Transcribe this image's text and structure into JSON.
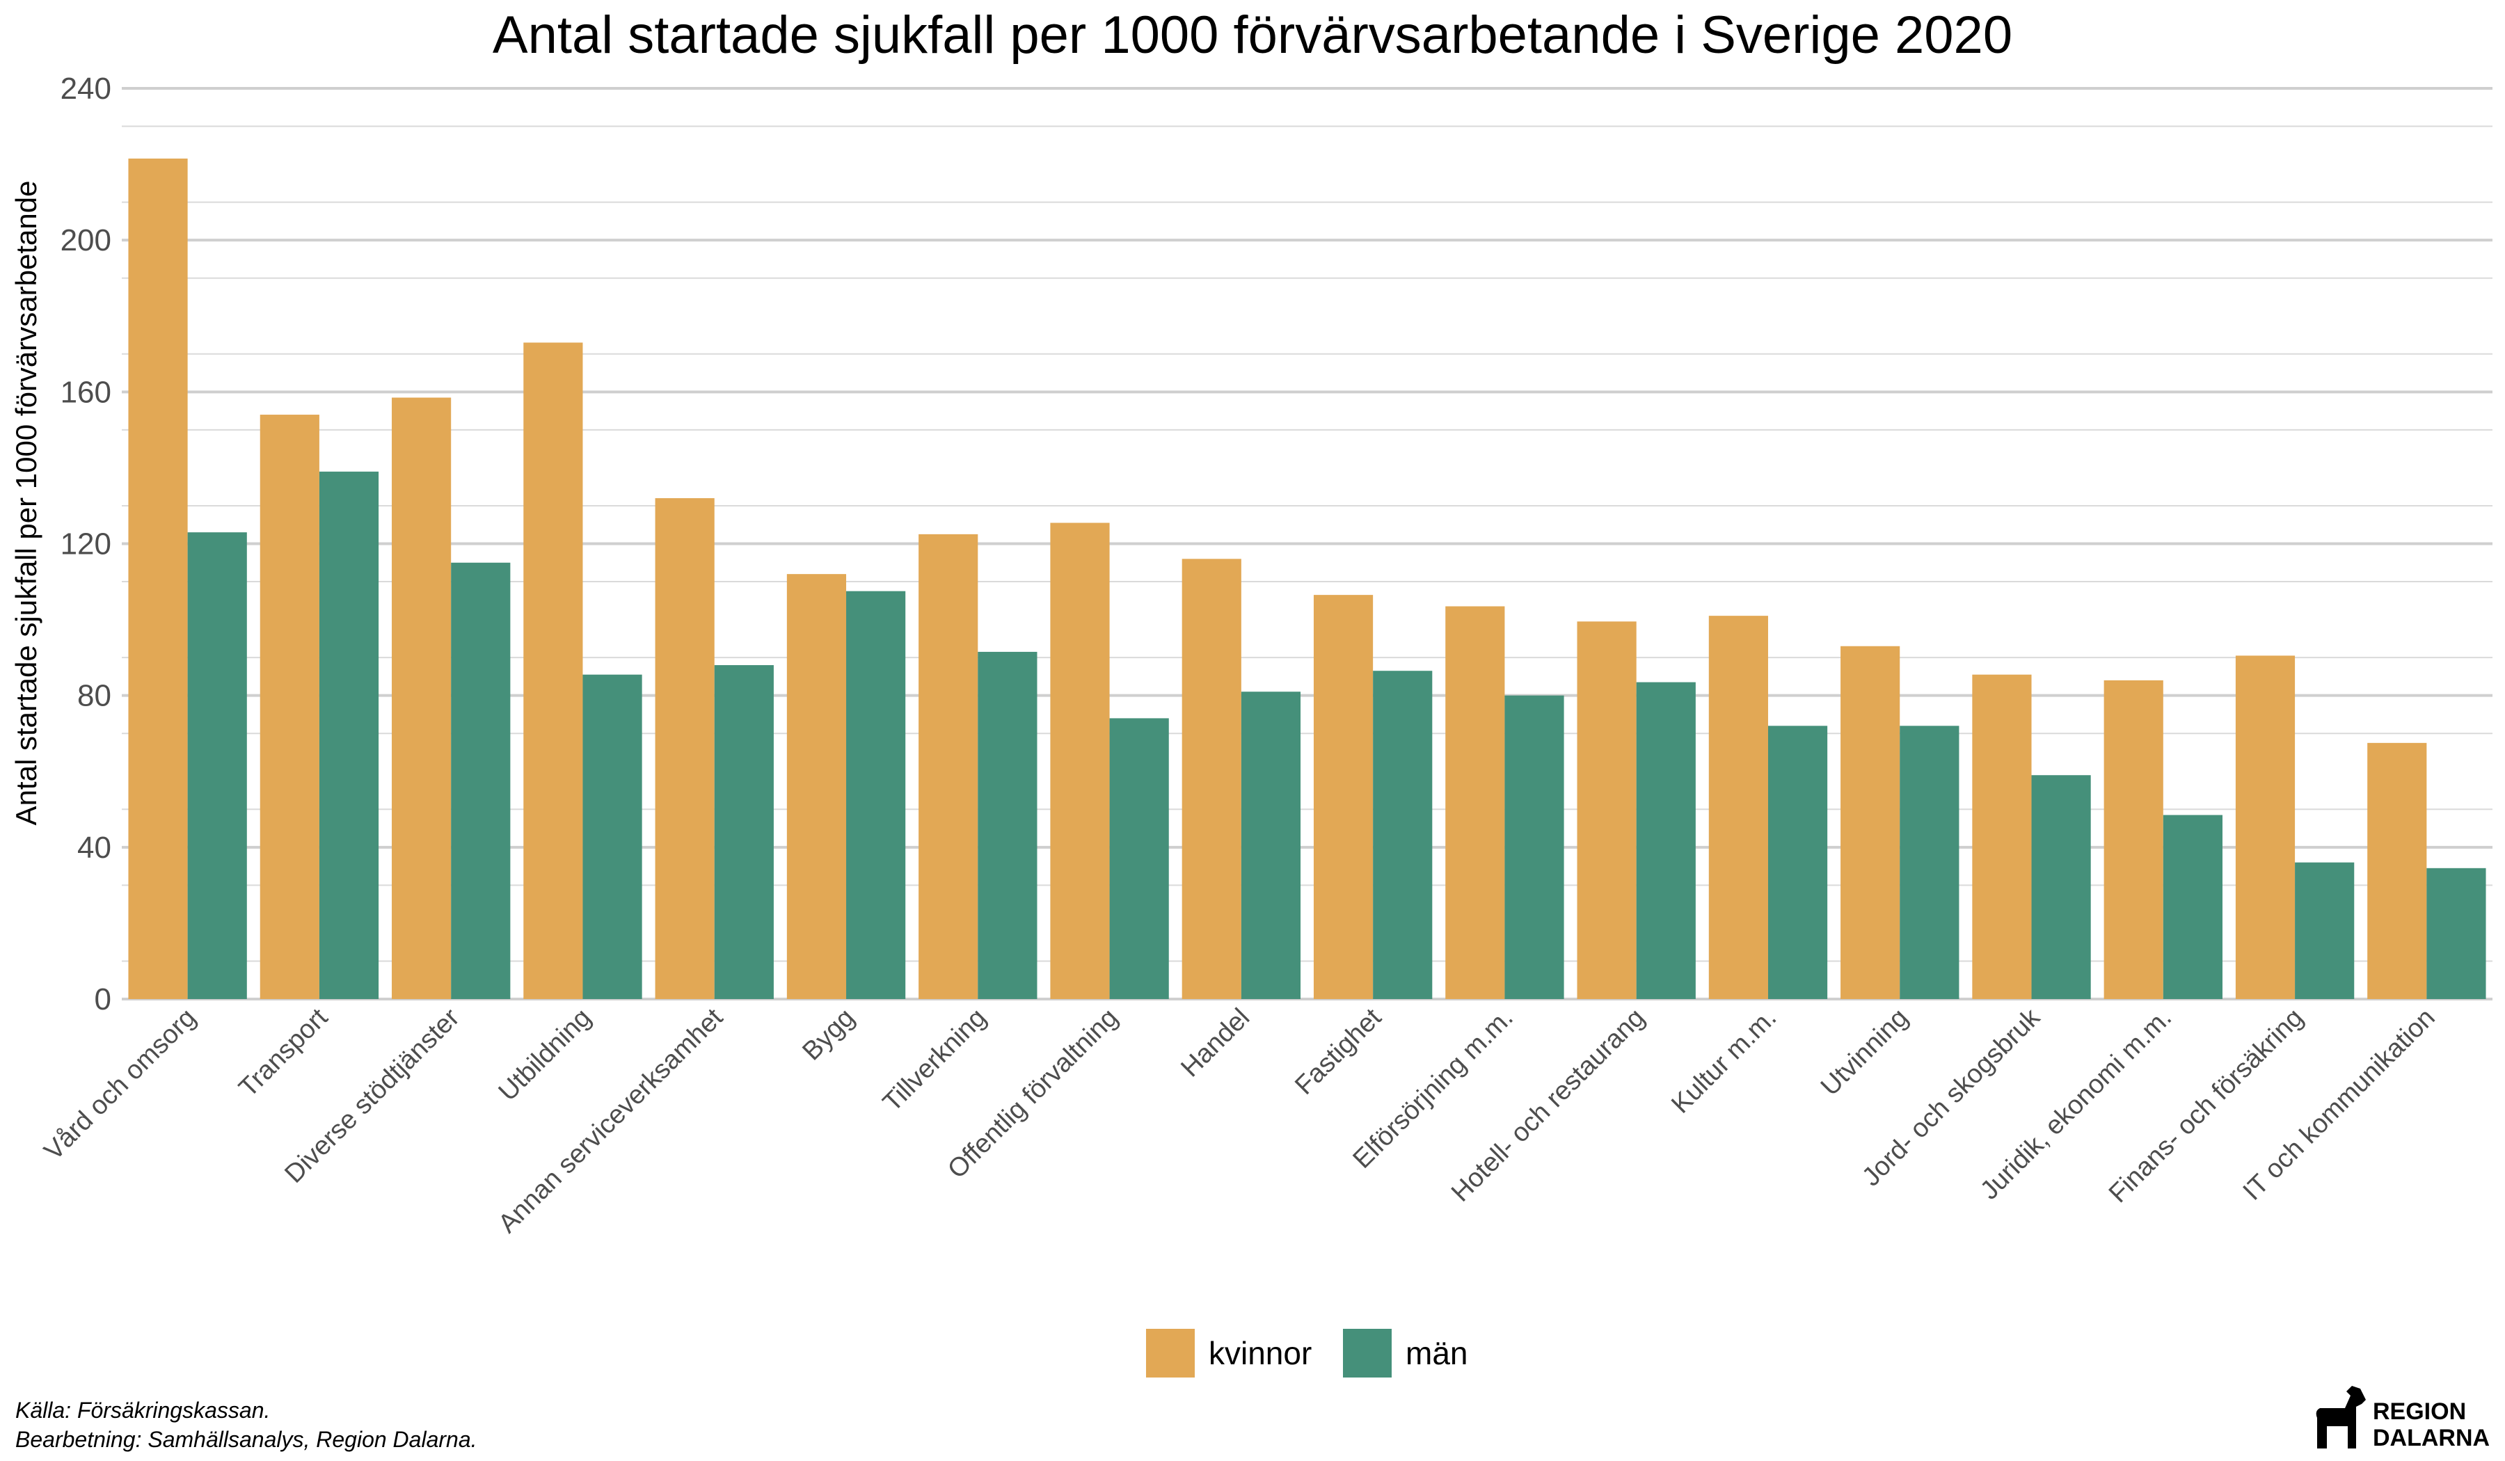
{
  "chart_data": {
    "type": "bar",
    "title": "Antal startade sjukfall per 1000 förvärvsarbetande i Sverige 2020",
    "ylabel": "Antal startade sjukfall per 1000 förvärvsarbetande",
    "xlabel": "",
    "ylim": [
      0,
      240
    ],
    "yticks": [
      0,
      40,
      80,
      120,
      160,
      200,
      240
    ],
    "grid": true,
    "legend_position": "bottom",
    "categories": [
      "Vård och omsorg",
      "Transport",
      "Diverse stödtjänster",
      "Utbildning",
      "Annan serviceverksamhet",
      "Bygg",
      "Tillverkning",
      "Offentlig förvaltning",
      "Handel",
      "Fastighet",
      "Elförsörjning m.m.",
      "Hotell- och restaurang",
      "Kultur m.m.",
      "Utvinning",
      "Jord- och skogsbruk",
      "Juridik, ekonomi m.m.",
      "Finans- och försäkring",
      "IT och kommunikation"
    ],
    "series": [
      {
        "name": "kvinnor",
        "color": "#E2A855",
        "values": [
          221.5,
          154,
          158.5,
          173,
          132,
          112,
          122.5,
          125.5,
          116,
          106.5,
          103.5,
          99.5,
          101,
          93,
          85.5,
          84,
          90.5,
          67.5
        ]
      },
      {
        "name": "män",
        "color": "#45907A",
        "values": [
          123,
          139,
          115,
          85.5,
          88,
          107.5,
          91.5,
          74,
          81,
          86.5,
          80,
          83.5,
          72,
          72,
          59,
          48.5,
          36,
          34.5
        ]
      }
    ]
  },
  "footer": {
    "source": "Källa: Försäkringskassan.",
    "processing": "Bearbetning: Samhällsanalys, Region Dalarna."
  },
  "logo": {
    "line1": "REGION",
    "line2": "DALARNA"
  }
}
